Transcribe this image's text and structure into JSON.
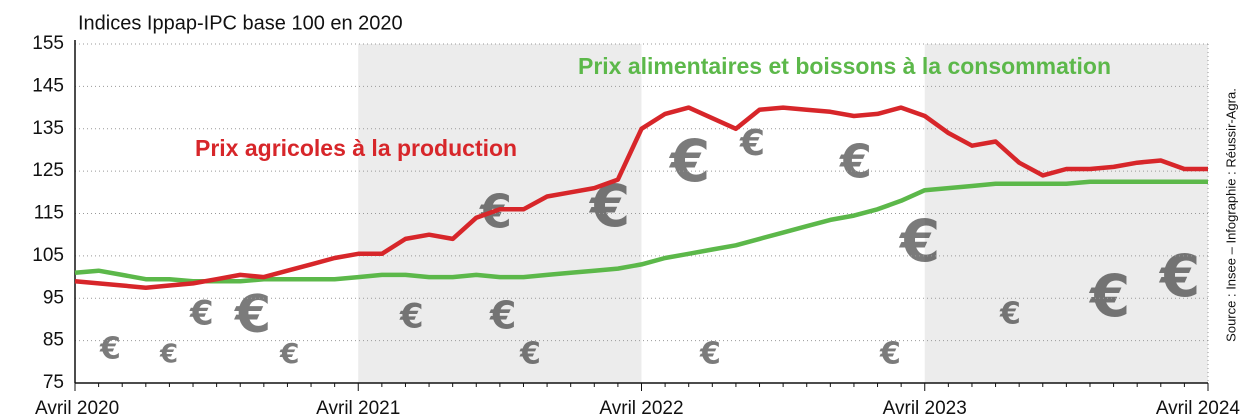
{
  "chart_data": {
    "type": "line",
    "subtitle": "Indices Ippap-IPC base 100 en 2020",
    "source": "Source : Insee – Infographie : Réussir-Agra.",
    "categories": [
      "Avril 2020",
      null,
      null,
      null,
      null,
      null,
      null,
      null,
      null,
      null,
      null,
      null,
      "Avril 2021",
      null,
      null,
      null,
      null,
      null,
      null,
      null,
      null,
      null,
      null,
      null,
      "Avril 2022",
      null,
      null,
      null,
      null,
      null,
      null,
      null,
      null,
      null,
      null,
      null,
      "Avril 2023",
      null,
      null,
      null,
      null,
      null,
      null,
      null,
      null,
      null,
      null,
      null,
      "Avril 2024"
    ],
    "series": [
      {
        "name": "Prix agricoles à la production",
        "color": "#d7262a",
        "values": [
          99,
          98.5,
          98,
          97.5,
          98,
          98.5,
          99.5,
          100.5,
          100,
          101.5,
          103,
          104.5,
          105.5,
          105.5,
          109,
          110,
          109,
          114,
          116,
          116,
          119,
          120,
          121,
          123,
          135,
          138.5,
          140,
          137.5,
          135,
          139.5,
          140,
          139.5,
          139,
          138,
          138.5,
          140,
          138,
          134,
          131,
          132,
          127,
          124,
          125.5,
          125.5,
          126,
          127,
          127.5,
          125.5,
          125.5
        ]
      },
      {
        "name": "Prix alimentaires et boissons à la consommation",
        "color": "#5cb84a",
        "values": [
          101,
          101.5,
          100.5,
          99.5,
          99.5,
          99,
          99,
          99,
          99.5,
          99.5,
          99.5,
          99.5,
          100,
          100.5,
          100.5,
          100,
          100,
          100.5,
          100,
          100,
          100.5,
          101,
          101.5,
          102,
          103,
          104.5,
          105.5,
          106.5,
          107.5,
          109,
          110.5,
          112,
          113.5,
          114.5,
          116,
          118,
          120.5,
          121,
          121.5,
          122,
          122,
          122,
          122,
          122.5,
          122.5,
          122.5,
          122.5,
          122.5,
          122.5
        ]
      }
    ],
    "ylim": [
      75,
      155
    ],
    "yticks": [
      75,
      85,
      95,
      105,
      115,
      125,
      135,
      145,
      155
    ],
    "grid": true
  }
}
